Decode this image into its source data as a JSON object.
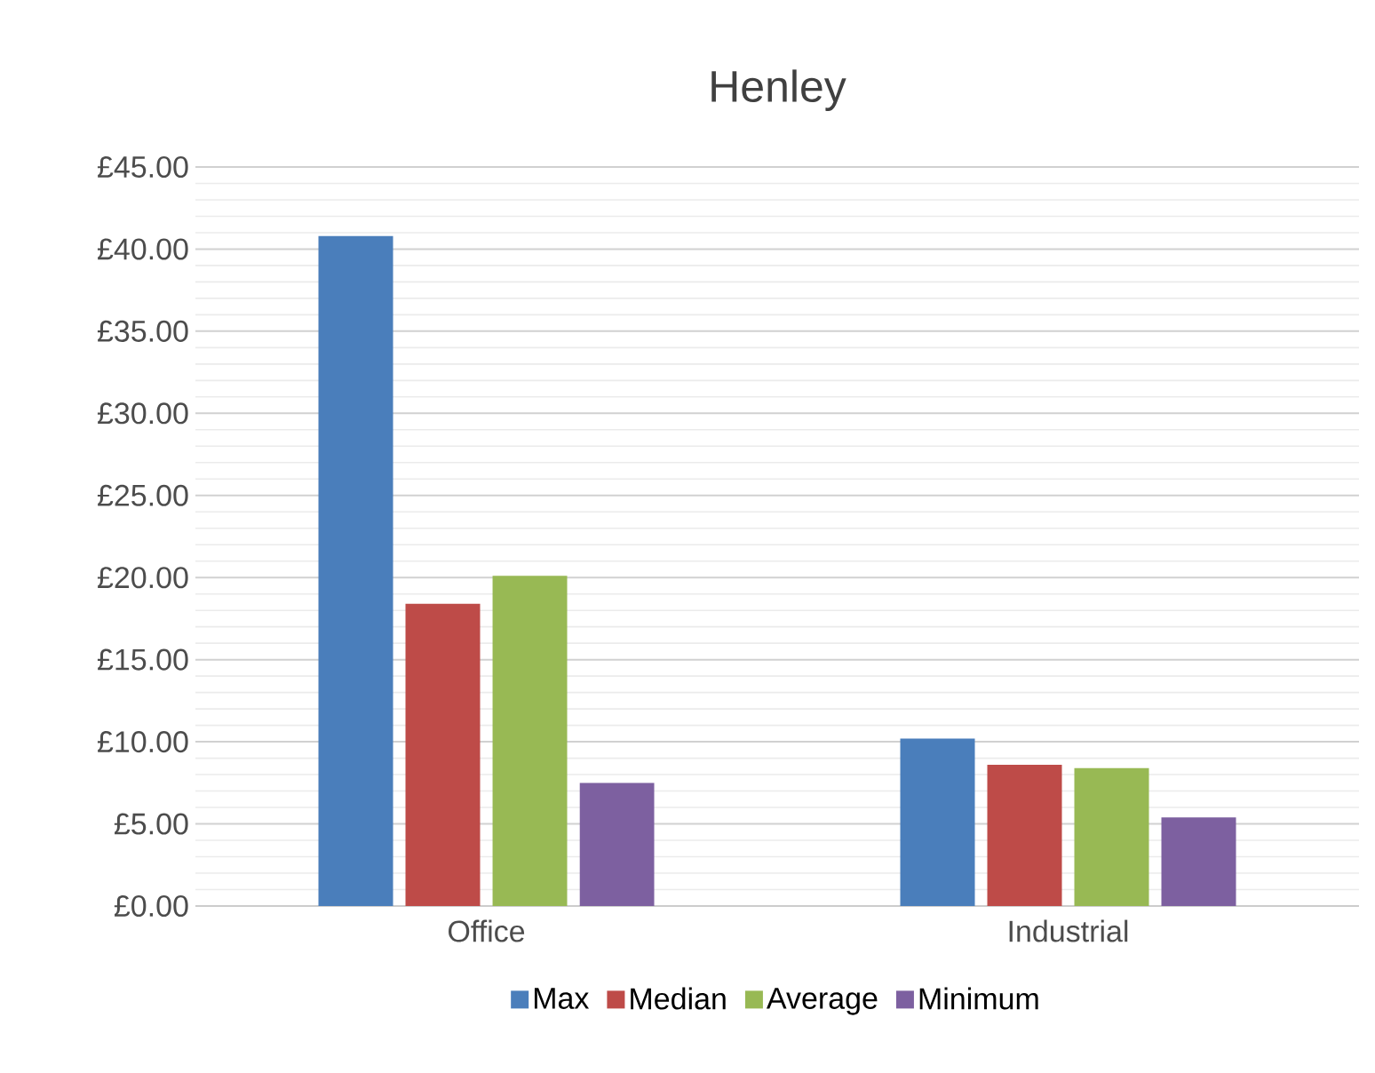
{
  "chart_data": {
    "type": "bar",
    "title": "Henley",
    "categories": [
      "Office",
      "Industrial"
    ],
    "series": [
      {
        "name": "Max",
        "color": "#4a7ebb",
        "values": [
          40.8,
          10.2
        ]
      },
      {
        "name": "Median",
        "color": "#be4b48",
        "values": [
          18.4,
          8.6
        ]
      },
      {
        "name": "Average",
        "color": "#98b954",
        "values": [
          20.1,
          8.4
        ]
      },
      {
        "name": "Minimum",
        "color": "#7d60a0",
        "values": [
          7.5,
          5.4
        ]
      }
    ],
    "ylim": [
      0,
      45
    ],
    "yticks": [
      {
        "value": 0,
        "label": "£0.00"
      },
      {
        "value": 5,
        "label": "£5.00"
      },
      {
        "value": 10,
        "label": "£10.00"
      },
      {
        "value": 15,
        "label": "£15.00"
      },
      {
        "value": 20,
        "label": "£20.00"
      },
      {
        "value": 25,
        "label": "£25.00"
      },
      {
        "value": 30,
        "label": "£30.00"
      },
      {
        "value": 35,
        "label": "£35.00"
      },
      {
        "value": 40,
        "label": "£40.00"
      },
      {
        "value": 45,
        "label": "£45.00"
      }
    ],
    "grid": "y",
    "legend": "bottom"
  }
}
